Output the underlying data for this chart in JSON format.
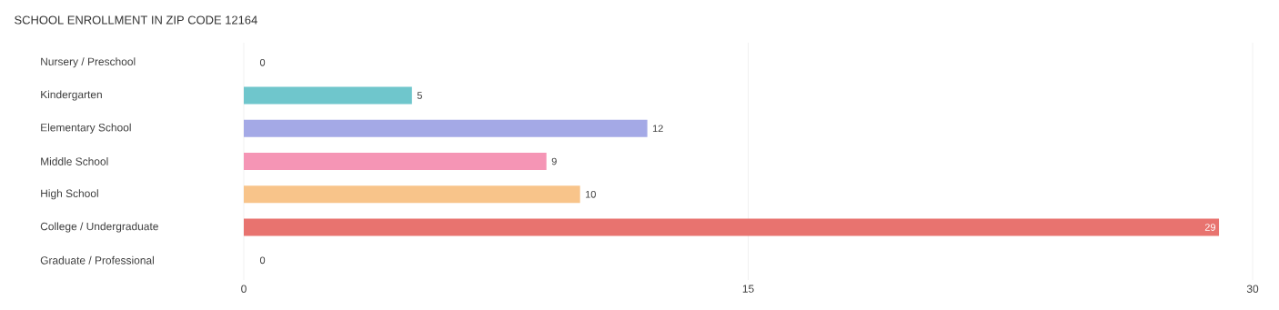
{
  "chart_data": {
    "type": "bar",
    "orientation": "horizontal",
    "title": "SCHOOL ENROLLMENT IN ZIP CODE 12164",
    "categories": [
      "Nursery / Preschool",
      "Kindergarten",
      "Elementary School",
      "Middle School",
      "High School",
      "College / Undergraduate",
      "Graduate / Professional"
    ],
    "values": [
      0,
      5,
      12,
      9,
      10,
      29,
      0
    ],
    "colors": [
      "#c9a8d4",
      "#6fc6cc",
      "#a4a9e6",
      "#f595b5",
      "#f8c48a",
      "#e8736f",
      "#a8c6ec"
    ],
    "xlim": [
      0,
      30
    ],
    "xticks": [
      0,
      15,
      30
    ],
    "grid": "x",
    "data_labels": true
  }
}
